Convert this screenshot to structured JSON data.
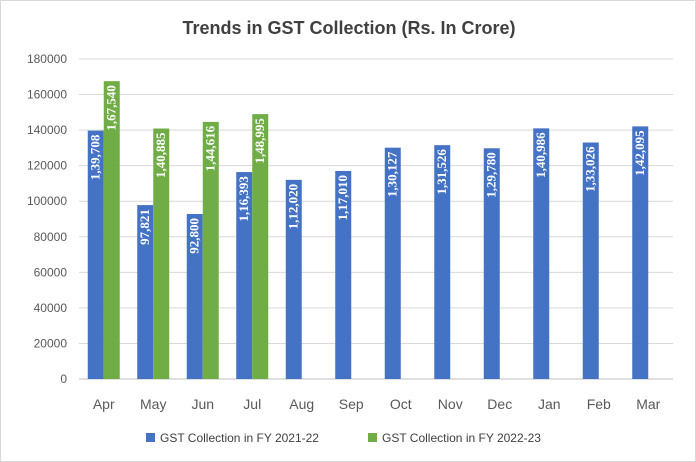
{
  "chart_data": {
    "type": "bar",
    "title": "Trends in GST Collection (Rs. In Crore)",
    "xlabel": "",
    "ylabel": "",
    "ylim": [
      0,
      180000
    ],
    "yticks": [
      0,
      20000,
      40000,
      60000,
      80000,
      100000,
      120000,
      140000,
      160000,
      180000
    ],
    "grid": true,
    "legend_position": "bottom",
    "categories": [
      "Apr",
      "May",
      "Jun",
      "Jul",
      "Aug",
      "Sep",
      "Oct",
      "Nov",
      "Dec",
      "Jan",
      "Feb",
      "Mar"
    ],
    "series": [
      {
        "name": "GST Collection in FY 2021-22",
        "color": "#4472c4",
        "values": [
          139708,
          97821,
          92800,
          116393,
          112020,
          117010,
          130127,
          131526,
          129780,
          140986,
          133026,
          142095
        ],
        "labels": [
          "1,39,708",
          "97,821",
          "92,800",
          "1,16,393",
          "1,12,020",
          "1,17,010",
          "1,30,127",
          "1,31,526",
          "1,29,780",
          "1,40,986",
          "1,33,026",
          "1,42,095"
        ]
      },
      {
        "name": "GST Collection in FY 2022-23",
        "color": "#70ad47",
        "values": [
          167540,
          140885,
          144616,
          148995,
          null,
          null,
          null,
          null,
          null,
          null,
          null,
          null
        ],
        "labels": [
          "1,67,540",
          "1,40,885",
          "1,44,616",
          "1,48,995",
          null,
          null,
          null,
          null,
          null,
          null,
          null,
          null
        ]
      }
    ]
  }
}
